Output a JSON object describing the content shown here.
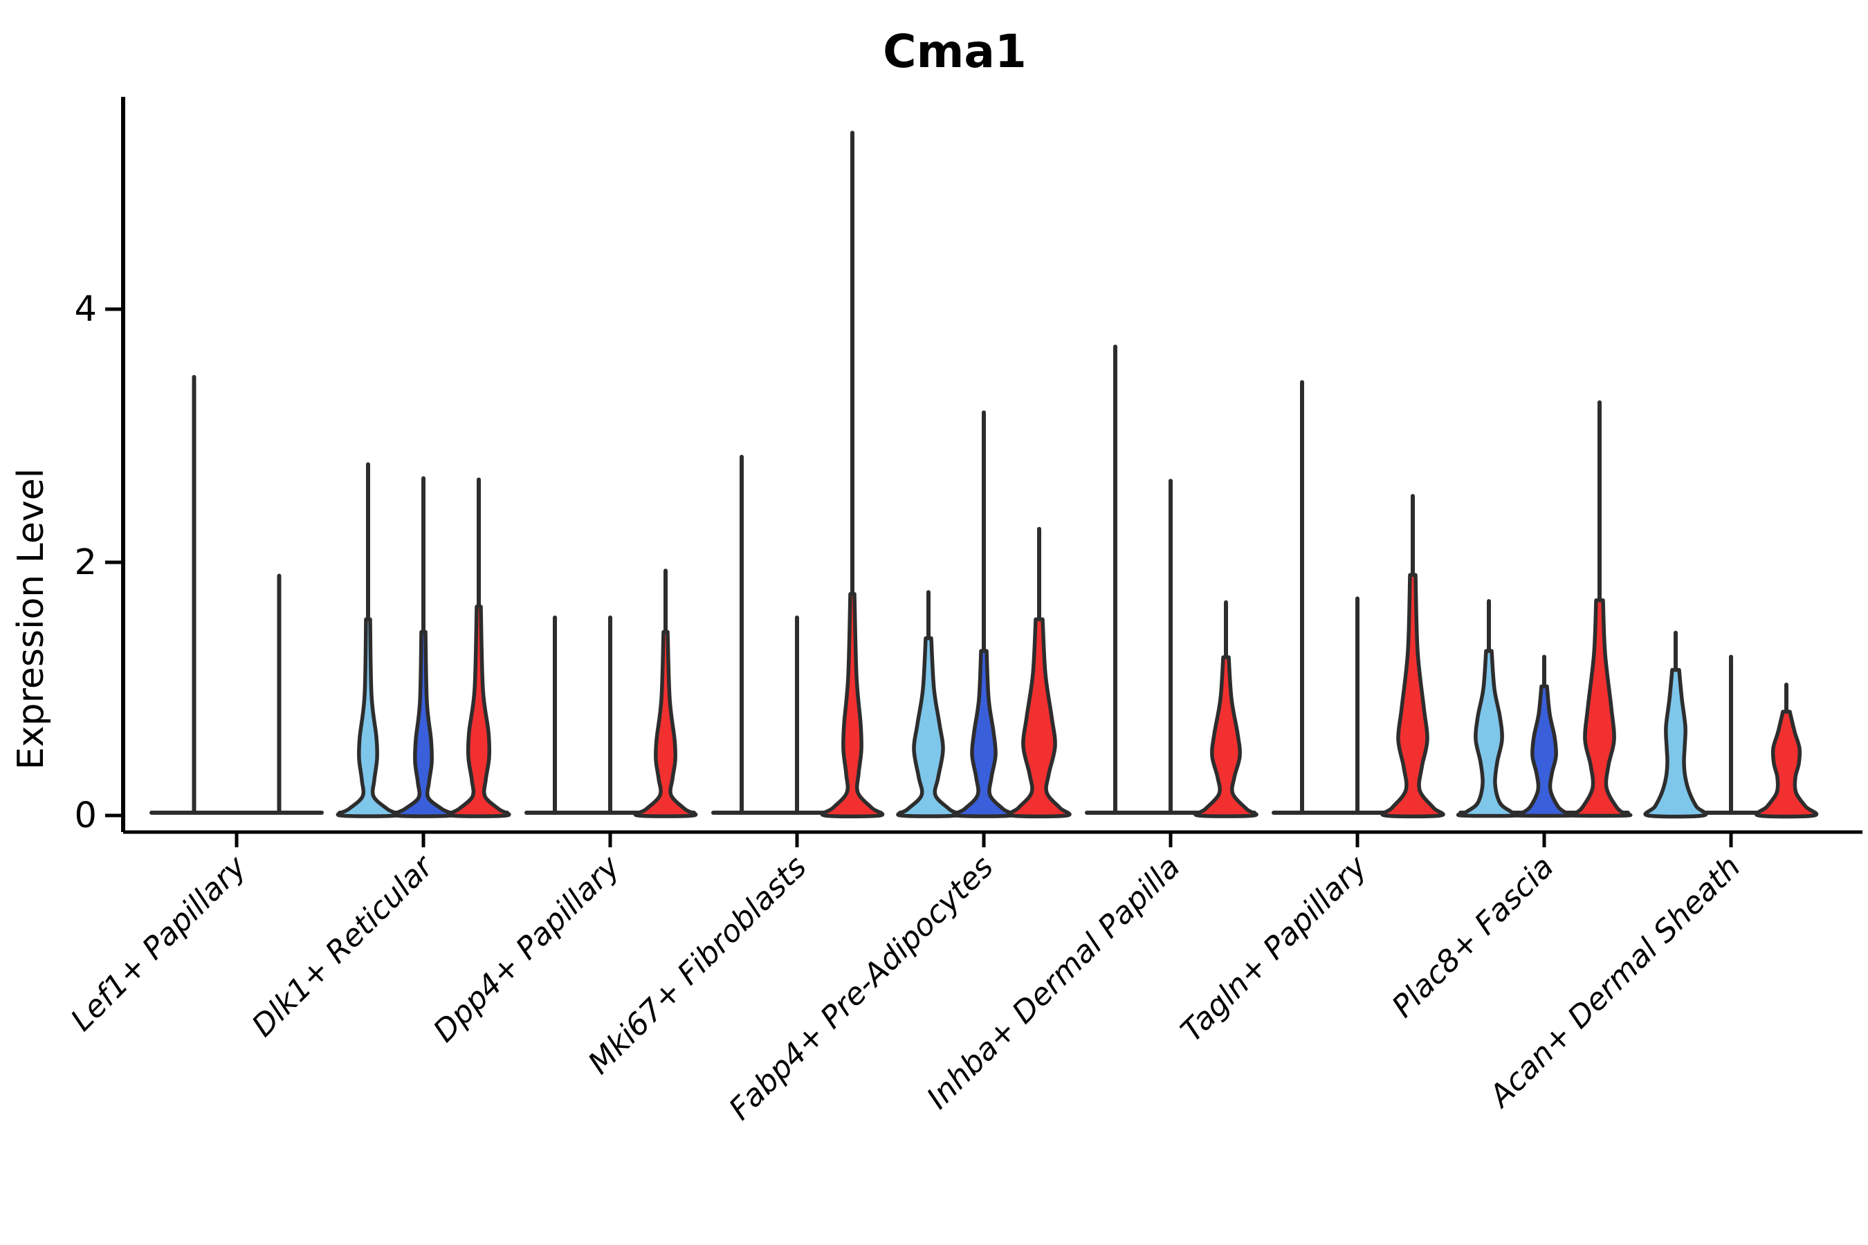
{
  "title": "Cma1",
  "chart_data": {
    "type": "violin",
    "title": "Cma1",
    "ylabel": "Expression Level",
    "xlabel": "",
    "yticks": [
      0,
      2,
      4
    ],
    "ylim": [
      0,
      5.75
    ],
    "grid": false,
    "legend_position": "none",
    "split_colors": {
      "c1": "#7EC6EA",
      "c2": "#3A5FDB",
      "c3": "#F23030"
    },
    "outline_color": "#2D2D2D",
    "axis_color": "#000000",
    "categories": [
      "Lef1+ Papillary",
      "Dlk1+ Reticular",
      "Dpp4+ Papillary",
      "Mki67+ Fibroblasts",
      "Fabp4+ Pre-Adipocytes",
      "Inhba+ Dermal Papilla",
      "Tagln+ Papillary",
      "Plac8+ Fascia",
      "Acan+ Dermal Sheath"
    ],
    "groups": [
      {
        "label": "Lef1+ Papillary",
        "violins": [
          {
            "color": "c1",
            "max": 3.48,
            "profile": null
          },
          {
            "color": "c2",
            "max": 1.91,
            "profile": null
          }
        ]
      },
      {
        "label": "Dlk1+ Reticular",
        "violins": [
          {
            "color": "c1",
            "max": 2.79,
            "profile": [
              [
                1.55,
                3
              ],
              [
                0.95,
                5
              ],
              [
                0.62,
                12
              ],
              [
                0.45,
                13
              ],
              [
                0.28,
                9
              ],
              [
                0.15,
                8
              ],
              [
                0.05,
                28
              ],
              [
                0,
                40
              ]
            ]
          },
          {
            "color": "c2",
            "max": 2.68,
            "profile": [
              [
                1.45,
                3
              ],
              [
                0.9,
                5
              ],
              [
                0.6,
                11
              ],
              [
                0.42,
                12
              ],
              [
                0.26,
                8
              ],
              [
                0.14,
                7
              ],
              [
                0.05,
                27
              ],
              [
                0,
                40
              ]
            ]
          },
          {
            "color": "c3",
            "max": 2.67,
            "profile": [
              [
                1.65,
                3
              ],
              [
                1.0,
                6
              ],
              [
                0.66,
                14
              ],
              [
                0.46,
                15
              ],
              [
                0.28,
                10
              ],
              [
                0.15,
                9
              ],
              [
                0.05,
                29
              ],
              [
                0,
                40
              ]
            ]
          }
        ]
      },
      {
        "label": "Dpp4+ Papillary",
        "violins": [
          {
            "color": "c1",
            "max": 1.58,
            "profile": null
          },
          {
            "color": "c2",
            "max": 1.58,
            "profile": null
          },
          {
            "color": "c3",
            "max": 1.95,
            "profile": [
              [
                1.45,
                3
              ],
              [
                0.92,
                6
              ],
              [
                0.6,
                13
              ],
              [
                0.44,
                14
              ],
              [
                0.29,
                10
              ],
              [
                0.16,
                8
              ],
              [
                0.05,
                28
              ],
              [
                0,
                40
              ]
            ]
          }
        ]
      },
      {
        "label": "Mki67+ Fibroblasts",
        "violins": [
          {
            "color": "c1",
            "max": 2.85,
            "profile": null
          },
          {
            "color": "c2",
            "max": 1.58,
            "profile": null
          },
          {
            "color": "c3",
            "max": 5.41,
            "profile": [
              [
                1.75,
                3
              ],
              [
                1.1,
                6
              ],
              [
                0.72,
                12
              ],
              [
                0.52,
                13
              ],
              [
                0.33,
                9
              ],
              [
                0.18,
                8
              ],
              [
                0.06,
                28
              ],
              [
                0,
                40
              ]
            ]
          }
        ]
      },
      {
        "label": "Fabp4+ Pre-Adipocytes",
        "violins": [
          {
            "color": "c1",
            "max": 1.78,
            "profile": [
              [
                1.4,
                4
              ],
              [
                1.0,
                8
              ],
              [
                0.72,
                16
              ],
              [
                0.52,
                21
              ],
              [
                0.3,
                14
              ],
              [
                0.16,
                10
              ],
              [
                0.05,
                30
              ],
              [
                0,
                40
              ]
            ]
          },
          {
            "color": "c2",
            "max": 3.2,
            "profile": [
              [
                1.3,
                4
              ],
              [
                0.92,
                7
              ],
              [
                0.66,
                14
              ],
              [
                0.48,
                17
              ],
              [
                0.3,
                11
              ],
              [
                0.16,
                9
              ],
              [
                0.05,
                28
              ],
              [
                0,
                40
              ]
            ]
          },
          {
            "color": "c3",
            "max": 2.28,
            "profile": [
              [
                1.55,
                5
              ],
              [
                1.12,
                9
              ],
              [
                0.78,
                18
              ],
              [
                0.55,
                23
              ],
              [
                0.33,
                14
              ],
              [
                0.18,
                11
              ],
              [
                0.06,
                30
              ],
              [
                0,
                40
              ]
            ]
          }
        ]
      },
      {
        "label": "Inhba+ Dermal Papilla",
        "violins": [
          {
            "color": "c1",
            "max": 3.72,
            "profile": null
          },
          {
            "color": "c2",
            "max": 2.66,
            "profile": null
          },
          {
            "color": "c3",
            "max": 1.7,
            "profile": [
              [
                1.25,
                4
              ],
              [
                0.92,
                8
              ],
              [
                0.64,
                17
              ],
              [
                0.47,
                20
              ],
              [
                0.3,
                12
              ],
              [
                0.17,
                10
              ],
              [
                0.05,
                30
              ],
              [
                0,
                40
              ]
            ]
          }
        ]
      },
      {
        "label": "Tagln+ Papillary",
        "violins": [
          {
            "color": "c1",
            "max": 3.44,
            "profile": null
          },
          {
            "color": "c2",
            "max": 1.73,
            "profile": null
          },
          {
            "color": "c3",
            "max": 2.54,
            "profile": [
              [
                1.9,
                4
              ],
              [
                1.3,
                7
              ],
              [
                0.85,
                16
              ],
              [
                0.6,
                21
              ],
              [
                0.38,
                13
              ],
              [
                0.2,
                10
              ],
              [
                0.06,
                30
              ],
              [
                0,
                40
              ]
            ]
          }
        ]
      },
      {
        "label": "Plac8+ Fascia",
        "violins": [
          {
            "color": "c1",
            "max": 1.71,
            "profile": [
              [
                1.3,
                4
              ],
              [
                1.0,
                8
              ],
              [
                0.78,
                16
              ],
              [
                0.6,
                19
              ],
              [
                0.42,
                12
              ],
              [
                0.25,
                9
              ],
              [
                0.1,
                16
              ],
              [
                0.03,
                32
              ],
              [
                0,
                40
              ]
            ]
          },
          {
            "color": "c2",
            "max": 1.27,
            "profile": [
              [
                1.02,
                4
              ],
              [
                0.8,
                8
              ],
              [
                0.62,
                15
              ],
              [
                0.47,
                17
              ],
              [
                0.33,
                11
              ],
              [
                0.2,
                9
              ],
              [
                0.07,
                20
              ],
              [
                0.02,
                32
              ],
              [
                0,
                40
              ]
            ]
          },
          {
            "color": "c3",
            "max": 3.28,
            "profile": [
              [
                1.7,
                5
              ],
              [
                1.28,
                8
              ],
              [
                0.85,
                17
              ],
              [
                0.6,
                21
              ],
              [
                0.4,
                13
              ],
              [
                0.22,
                10
              ],
              [
                0.07,
                24
              ],
              [
                0.02,
                34
              ],
              [
                0,
                40
              ]
            ]
          }
        ]
      },
      {
        "label": "Acan+ Dermal Sheath",
        "violins": [
          {
            "color": "c1",
            "max": 1.46,
            "profile": [
              [
                1.15,
                5
              ],
              [
                0.92,
                9
              ],
              [
                0.7,
                14
              ],
              [
                0.54,
                13
              ],
              [
                0.42,
                12
              ],
              [
                0.3,
                14
              ],
              [
                0.18,
                20
              ],
              [
                0.07,
                30
              ],
              [
                0,
                40
              ]
            ]
          },
          {
            "color": "c2",
            "max": 1.27,
            "profile": null
          },
          {
            "color": "c3",
            "max": 1.05,
            "profile": [
              [
                0.82,
                5
              ],
              [
                0.66,
                12
              ],
              [
                0.53,
                19
              ],
              [
                0.41,
                18
              ],
              [
                0.3,
                13
              ],
              [
                0.18,
                14
              ],
              [
                0.07,
                28
              ],
              [
                0,
                40
              ]
            ]
          }
        ]
      }
    ]
  }
}
